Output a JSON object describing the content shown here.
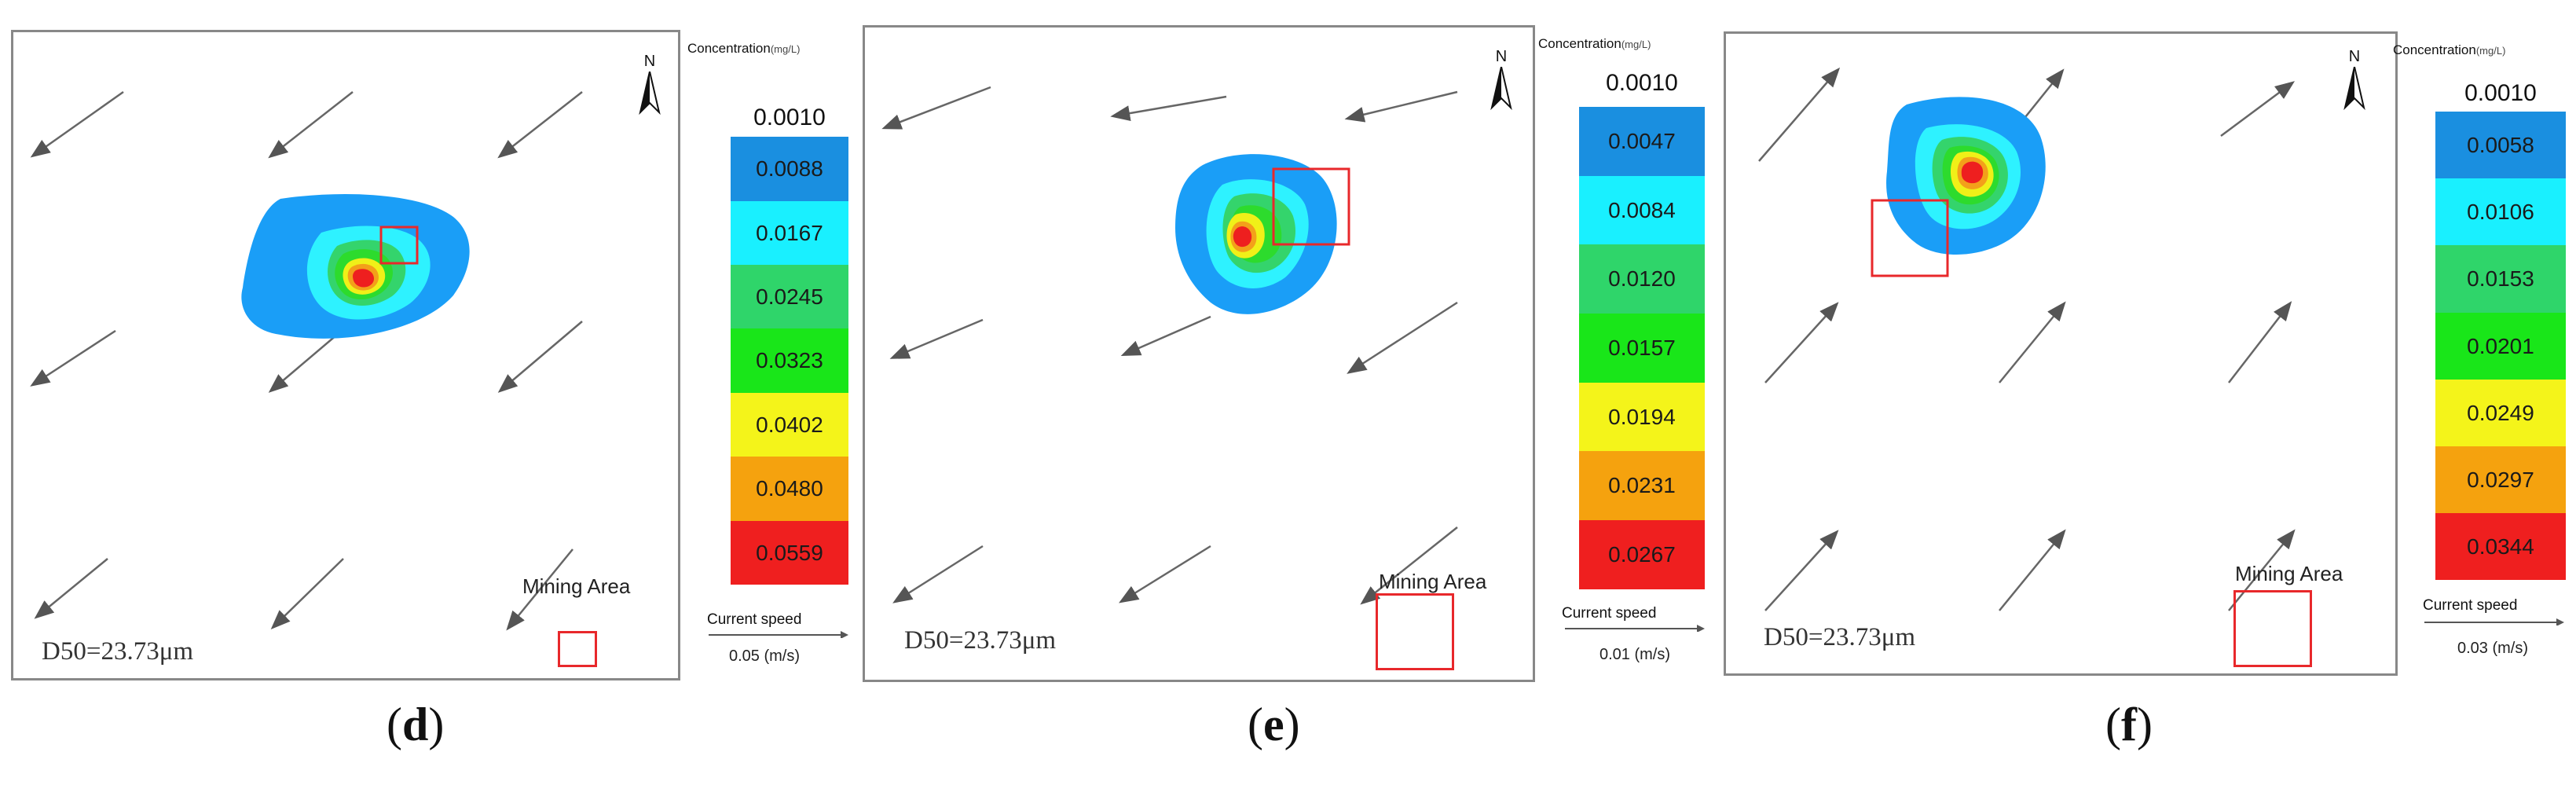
{
  "legend_title": "Concentration",
  "legend_unit": "(mg/L)",
  "north_label": "N",
  "speed_label": "Current speed",
  "mining_label": "Mining Area",
  "d50_label": "D50=23.73μm",
  "colors": {
    "bands": [
      "#1a8fe0",
      "#19f0ff",
      "#2fd56a",
      "#19e619",
      "#f4f41a",
      "#f5a20e",
      "#ef1f1f"
    ],
    "plume": [
      "#1a9ef7",
      "#2ef2ff",
      "#34d46c",
      "#2ddb2d",
      "#f0f018",
      "#f3a01a",
      "#ee1f1f"
    ],
    "frame": "#888888",
    "mining_box": "#e8282b"
  },
  "panels": [
    {
      "id": "d",
      "caption_open": "(",
      "caption_letter": "d",
      "caption_close": ")",
      "top_value": "0.0010",
      "legend_values": [
        "0.0088",
        "0.0167",
        "0.0245",
        "0.0323",
        "0.0402",
        "0.0480",
        "0.0559"
      ],
      "speed_value": "0.05 (m/s)"
    },
    {
      "id": "e",
      "caption_open": "(",
      "caption_letter": "e",
      "caption_close": ")",
      "top_value": "0.0010",
      "legend_values": [
        "0.0047",
        "0.0084",
        "0.0120",
        "0.0157",
        "0.0194",
        "0.0231",
        "0.0267"
      ],
      "speed_value": "0.01 (m/s)"
    },
    {
      "id": "f",
      "caption_open": "(",
      "caption_letter": "f",
      "caption_close": ")",
      "top_value": "0.0010",
      "legend_values": [
        "0.0058",
        "0.0106",
        "0.0153",
        "0.0201",
        "0.0249",
        "0.0297",
        "0.0344"
      ],
      "speed_value": "0.03 (m/s)"
    }
  ]
}
